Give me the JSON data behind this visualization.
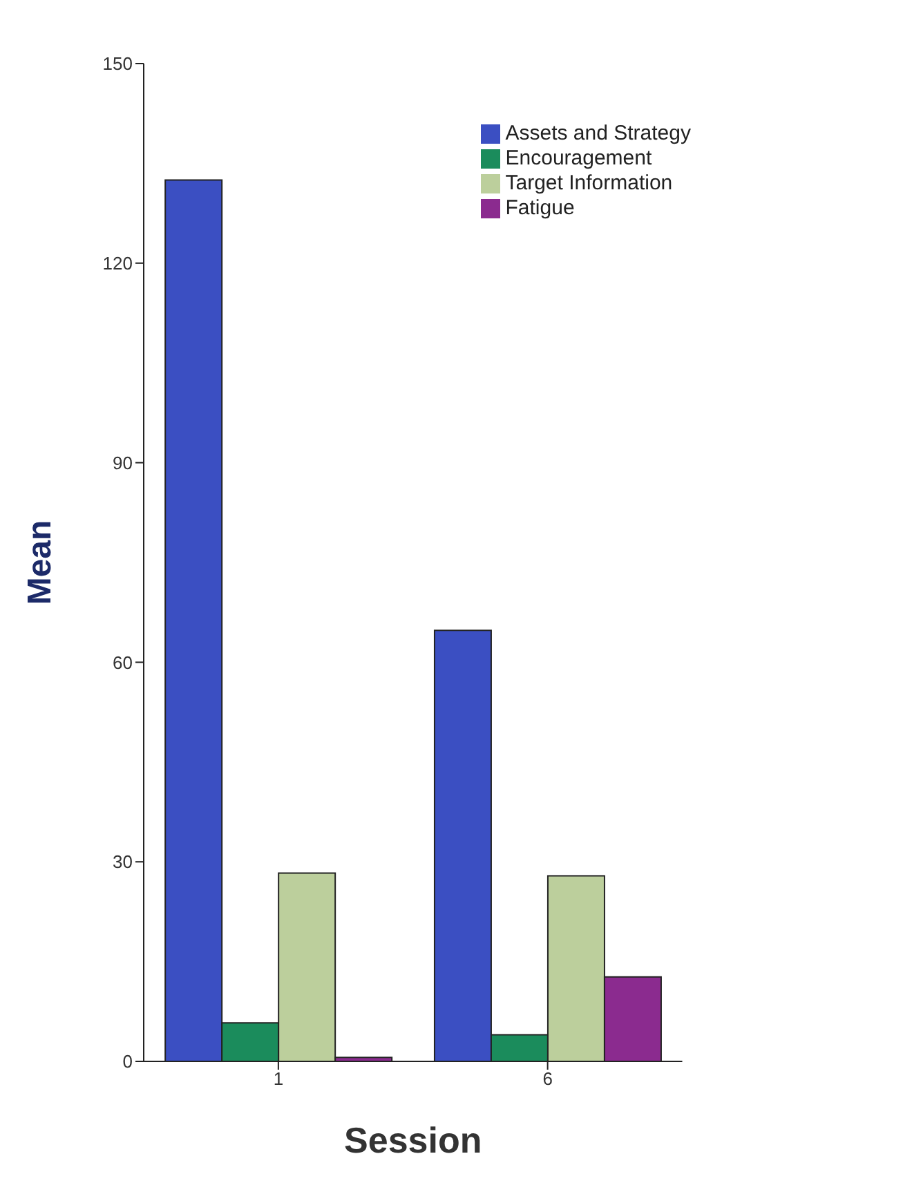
{
  "chart_data": {
    "type": "bar",
    "xlabel": "Session",
    "ylabel": "Mean",
    "categories": [
      "1",
      "6"
    ],
    "series": [
      {
        "name": "Assets and Strategy",
        "color": "#3b4fc2",
        "values": [
          132.5,
          64.8
        ]
      },
      {
        "name": "Encouragement",
        "color": "#1b8c5c",
        "values": [
          5.8,
          4
        ]
      },
      {
        "name": "Target Information",
        "color": "#bccf9c",
        "values": [
          28.3,
          27.9
        ]
      },
      {
        "name": "Fatigue",
        "color": "#8b2b8f",
        "values": [
          0.6,
          12.7
        ]
      }
    ],
    "ylim": [
      0,
      150
    ],
    "yticks": [
      0,
      30,
      60,
      90,
      120,
      150
    ],
    "grid": false,
    "legend": "top right"
  }
}
